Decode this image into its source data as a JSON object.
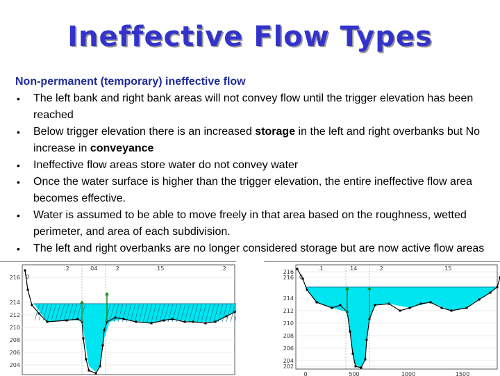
{
  "slide": {
    "title": "Ineffective Flow Types",
    "heading": "Non-permanent (temporary) ineffective flow",
    "bullets": [
      {
        "parts": [
          {
            "t": "The left bank and right bank areas will not convey flow until the trigger elevation has been reached",
            "b": false
          }
        ]
      },
      {
        "parts": [
          {
            "t": "Below trigger elevation there is an increased ",
            "b": false
          },
          {
            "t": "storage",
            "b": true
          },
          {
            "t": " in the left and right overbanks but No increase in ",
            "b": false
          },
          {
            "t": "conveyance",
            "b": true
          }
        ]
      },
      {
        "parts": [
          {
            "t": "Ineffective flow areas store water do not convey water",
            "b": false
          }
        ]
      },
      {
        "parts": [
          {
            "t": "Once the water surface is higher than the trigger elevation, the entire ineffective flow area becomes effective.",
            "b": false
          }
        ]
      },
      {
        "parts": [
          {
            "t": "Water is assumed to be able to move freely in that area based on the roughness, wetted perimeter, and area of each subdivision.",
            "b": false
          }
        ]
      },
      {
        "parts": [
          {
            "t": "The left and right overbanks are no longer considered storage but are now active flow areas",
            "b": false
          }
        ]
      }
    ],
    "bullet_symbol": "•"
  },
  "figures": {
    "left": {
      "y_ticks": [
        "216",
        "214",
        "212",
        "210",
        "208",
        "206",
        "204"
      ],
      "n_values": [
        ".2",
        ".04",
        ".2",
        ".15",
        ".2"
      ],
      "marker": "0"
    },
    "right": {
      "y_ticks": [
        "216",
        "216",
        "214",
        "212",
        "210",
        "208",
        "206",
        "204",
        "202"
      ],
      "x_ticks": [
        "0",
        "500",
        "1000",
        "1500"
      ],
      "n_values": [
        ".1",
        ".14",
        ".2",
        ".15"
      ],
      "marker": "0"
    }
  },
  "colors": {
    "title": "#3333cc",
    "heading": "#1f2a9c",
    "water": "#00e5f0",
    "ground": "#000000",
    "trigger_marker": "#1c8a1c"
  }
}
